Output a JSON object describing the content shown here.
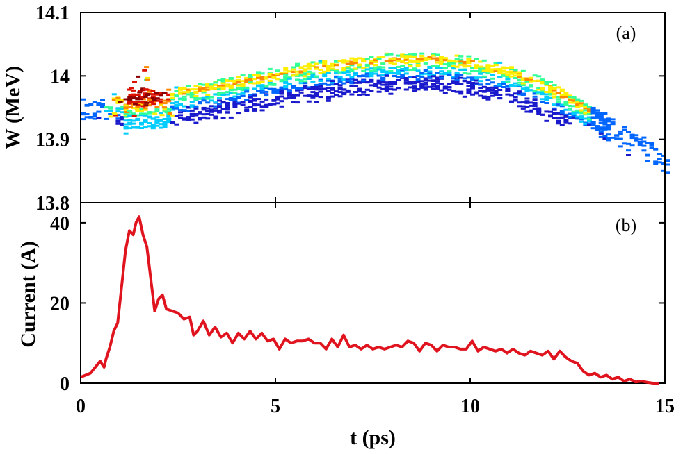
{
  "chart_data": [
    {
      "type": "heatmap",
      "panel_label": "(a)",
      "xlabel": "",
      "ylabel": "W (MeV)",
      "xlim": [
        0,
        15
      ],
      "ylim": [
        13.8,
        14.1
      ],
      "xticks": [
        0,
        5,
        10,
        15
      ],
      "yticks": [
        "13.8",
        "13.9",
        "14",
        "14.1"
      ],
      "colormap": [
        "#1a1acc",
        "#0066ff",
        "#00ccff",
        "#33ff99",
        "#ffee00",
        "#ff8800",
        "#dd1100",
        "#880000"
      ],
      "ridge": {
        "t": [
          0.0,
          1.0,
          2.0,
          3.0,
          4.0,
          5.0,
          6.0,
          7.0,
          8.0,
          9.0,
          10.0,
          11.0,
          12.0,
          13.0,
          14.0,
          15.0
        ],
        "W": [
          13.955,
          13.962,
          13.968,
          13.978,
          13.99,
          14.002,
          14.012,
          14.02,
          14.025,
          14.026,
          14.02,
          14.005,
          13.98,
          13.945,
          13.905,
          13.87
        ]
      },
      "hotspot": {
        "t": 1.5,
        "W": 13.965
      }
    },
    {
      "type": "line",
      "panel_label": "(b)",
      "xlabel": "t (ps)",
      "ylabel": "Current (A)",
      "xlim": [
        0,
        15
      ],
      "ylim": [
        0,
        45
      ],
      "xticks": [
        "0",
        "5",
        "10",
        "15"
      ],
      "yticks": [
        "0",
        "20",
        "40"
      ],
      "color": "#e0141e",
      "series": [
        {
          "x": [
            0.0,
            0.25,
            0.5,
            0.6,
            0.65,
            0.75,
            0.85,
            0.95,
            1.05,
            1.15,
            1.25,
            1.35,
            1.42,
            1.5,
            1.6,
            1.7,
            1.8,
            1.9,
            2.0,
            2.1,
            2.2,
            2.35,
            2.5,
            2.65,
            2.8,
            2.9,
            3.0,
            3.15,
            3.3,
            3.45,
            3.6,
            3.75,
            3.9,
            4.05,
            4.2,
            4.35,
            4.5,
            4.65,
            4.8,
            4.95,
            5.1,
            5.25,
            5.4,
            5.55,
            5.7,
            5.85,
            6.0,
            6.15,
            6.3,
            6.45,
            6.6,
            6.75,
            6.9,
            7.05,
            7.2,
            7.35,
            7.5,
            7.65,
            7.8,
            7.95,
            8.1,
            8.25,
            8.4,
            8.55,
            8.7,
            8.85,
            9.0,
            9.15,
            9.3,
            9.45,
            9.6,
            9.75,
            9.9,
            10.05,
            10.2,
            10.35,
            10.5,
            10.65,
            10.8,
            10.95,
            11.1,
            11.25,
            11.4,
            11.55,
            11.7,
            11.85,
            12.0,
            12.15,
            12.3,
            12.45,
            12.6,
            12.75,
            12.9,
            13.05,
            13.2,
            13.35,
            13.5,
            13.65,
            13.8,
            13.95,
            14.1,
            14.25,
            14.4,
            14.55,
            14.7,
            14.85
          ],
          "y": [
            1.5,
            2.5,
            5.5,
            4.0,
            6.0,
            9.0,
            13.0,
            15.0,
            24.0,
            33.0,
            38.0,
            37.0,
            40.0,
            41.5,
            37.0,
            34.0,
            26.0,
            18.0,
            21.0,
            22.0,
            18.5,
            18.0,
            17.5,
            16.0,
            16.5,
            12.0,
            13.0,
            15.5,
            12.0,
            14.0,
            11.5,
            12.5,
            10.0,
            12.5,
            11.0,
            13.0,
            11.0,
            12.5,
            10.5,
            11.0,
            8.5,
            11.0,
            10.0,
            10.5,
            10.5,
            11.0,
            10.0,
            10.0,
            8.5,
            11.0,
            9.0,
            12.0,
            9.0,
            9.5,
            8.5,
            9.5,
            8.5,
            9.0,
            8.5,
            9.0,
            9.5,
            9.0,
            10.5,
            10.0,
            8.0,
            10.0,
            9.5,
            8.0,
            9.5,
            9.0,
            9.0,
            8.5,
            8.5,
            10.5,
            8.0,
            9.0,
            8.5,
            8.0,
            8.5,
            7.5,
            8.5,
            7.5,
            7.0,
            8.0,
            7.5,
            7.0,
            8.0,
            6.0,
            8.0,
            6.5,
            5.5,
            5.0,
            3.0,
            2.0,
            2.5,
            1.5,
            2.0,
            1.0,
            1.5,
            0.5,
            1.0,
            0.3,
            0.5,
            0.2,
            0.0,
            0.0
          ]
        }
      ]
    }
  ]
}
